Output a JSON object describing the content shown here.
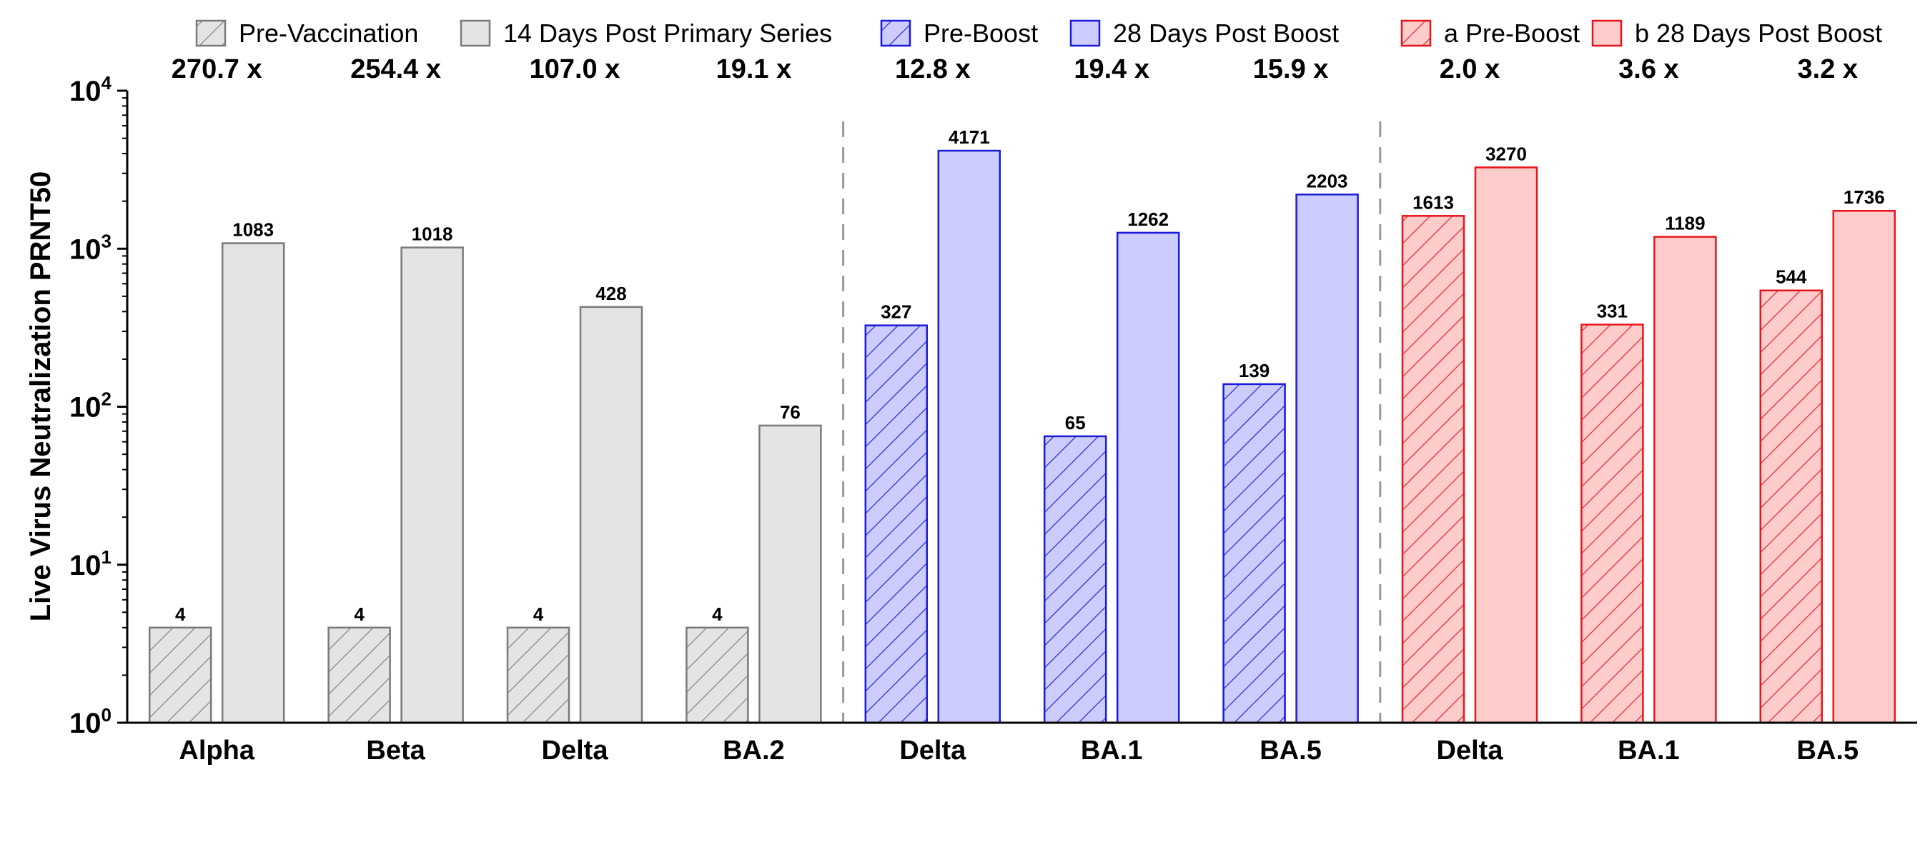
{
  "chart_data": {
    "type": "bar",
    "ylabel": "Live Virus Neutralization PRNT50",
    "yscale": "log",
    "ylim": [
      1,
      10000
    ],
    "ytick_labels": [
      {
        "base": "10",
        "exp": "0"
      },
      {
        "base": "10",
        "exp": "1"
      },
      {
        "base": "10",
        "exp": "2"
      },
      {
        "base": "10",
        "exp": "3"
      },
      {
        "base": "10",
        "exp": "4"
      }
    ],
    "legend_position": "top",
    "legend": [
      {
        "label": "Pre-Vaccination",
        "style": "gray-hatched"
      },
      {
        "label": "14 Days Post Primary Series",
        "style": "gray-solid"
      },
      {
        "label": "Pre-Boost",
        "style": "blue-hatched"
      },
      {
        "label": "28 Days Post Boost",
        "style": "blue-solid"
      },
      {
        "label": "a Pre-Boost",
        "style": "red-hatched"
      },
      {
        "label": "b 28 Days Post Boost",
        "style": "red-solid"
      }
    ],
    "styles": {
      "gray-hatched": {
        "fill": "#e4e4e4",
        "stroke": "#7a7a7a",
        "hatch": true
      },
      "gray-solid": {
        "fill": "#e4e4e4",
        "stroke": "#7a7a7a",
        "hatch": false
      },
      "blue-hatched": {
        "fill": "#ccccff",
        "stroke": "#1a1adb",
        "hatch": true
      },
      "blue-solid": {
        "fill": "#ccccff",
        "stroke": "#1a1adb",
        "hatch": false
      },
      "red-hatched": {
        "fill": "#ffcccc",
        "stroke": "#e8141a",
        "hatch": true
      },
      "red-solid": {
        "fill": "#ffcccc",
        "stroke": "#e8141a",
        "hatch": false
      }
    },
    "divider_color": "#999999",
    "groups": [
      {
        "category": "Alpha",
        "fold": "270.7 x",
        "pre_style": "gray-hatched",
        "post_style": "gray-solid",
        "pre": 4,
        "post": 1083,
        "pre_label": "4",
        "post_label": "1083"
      },
      {
        "category": "Beta",
        "fold": "254.4 x",
        "pre_style": "gray-hatched",
        "post_style": "gray-solid",
        "pre": 4,
        "post": 1018,
        "pre_label": "4",
        "post_label": "1018"
      },
      {
        "category": "Delta",
        "fold": "107.0 x",
        "pre_style": "gray-hatched",
        "post_style": "gray-solid",
        "pre": 4,
        "post": 428,
        "pre_label": "4",
        "post_label": "428"
      },
      {
        "category": "BA.2",
        "fold": "19.1 x",
        "pre_style": "gray-hatched",
        "post_style": "gray-solid",
        "pre": 4,
        "post": 76,
        "pre_label": "4",
        "post_label": "76"
      },
      {
        "category": "Delta",
        "fold": "12.8 x",
        "pre_style": "blue-hatched",
        "post_style": "blue-solid",
        "pre": 327,
        "post": 4171,
        "pre_label": "327",
        "post_label": "4171"
      },
      {
        "category": "BA.1",
        "fold": "19.4 x",
        "pre_style": "blue-hatched",
        "post_style": "blue-solid",
        "pre": 65,
        "post": 1262,
        "pre_label": "65",
        "post_label": "1262"
      },
      {
        "category": "BA.5",
        "fold": "15.9 x",
        "pre_style": "blue-hatched",
        "post_style": "blue-solid",
        "pre": 139,
        "post": 2203,
        "pre_label": "139",
        "post_label": "2203"
      },
      {
        "category": "Delta",
        "fold": "2.0 x",
        "pre_style": "red-hatched",
        "post_style": "red-solid",
        "pre": 1613,
        "post": 3270,
        "pre_label": "1613",
        "post_label": "3270"
      },
      {
        "category": "BA.1",
        "fold": "3.6 x",
        "pre_style": "red-hatched",
        "post_style": "red-solid",
        "pre": 331,
        "post": 1189,
        "pre_label": "331",
        "post_label": "1189"
      },
      {
        "category": "BA.5",
        "fold": "3.2 x",
        "pre_style": "red-hatched",
        "post_style": "red-solid",
        "pre": 544,
        "post": 1736,
        "pre_label": "544",
        "post_label": "1736"
      }
    ]
  }
}
